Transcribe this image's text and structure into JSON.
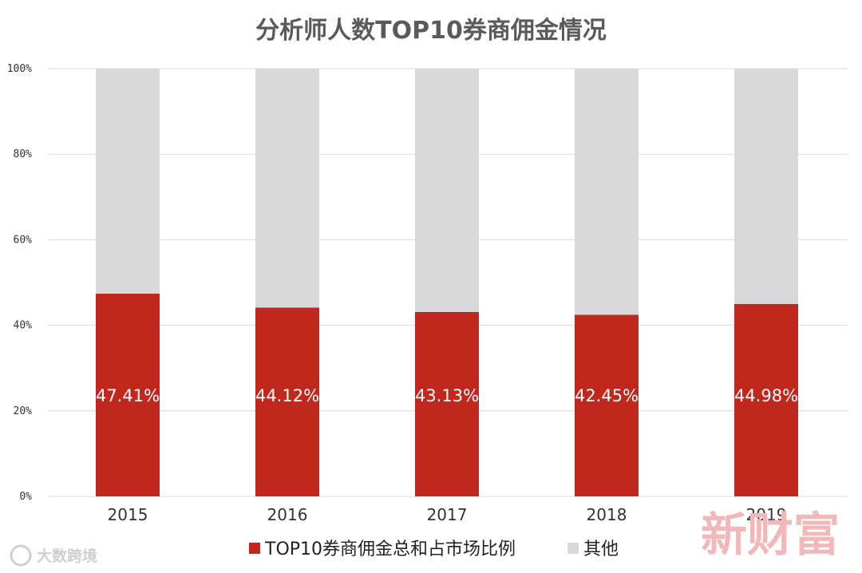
{
  "chart_data": {
    "type": "bar",
    "stacked": true,
    "title": "分析师人数TOP10券商佣金情况",
    "categories": [
      "2015",
      "2016",
      "2017",
      "2018",
      "2019"
    ],
    "series": [
      {
        "name": "TOP10券商佣金总和占市场比例",
        "values": [
          47.41,
          44.12,
          43.13,
          42.45,
          44.98
        ],
        "color": "#c0281d"
      },
      {
        "name": "其他",
        "values": [
          52.59,
          55.88,
          56.87,
          57.55,
          55.02
        ],
        "color": "#d9d9d9"
      }
    ],
    "data_labels": [
      "47.41%",
      "44.12%",
      "43.13%",
      "42.45%",
      "44.98%"
    ],
    "yticks": [
      "0%",
      "20%",
      "40%",
      "60%",
      "80%",
      "100%"
    ],
    "ylim": [
      0,
      100
    ],
    "grid": true,
    "legend_position": "bottom"
  },
  "watermarks": {
    "logo_text": "大数跨境",
    "brand_text": "新财富"
  }
}
